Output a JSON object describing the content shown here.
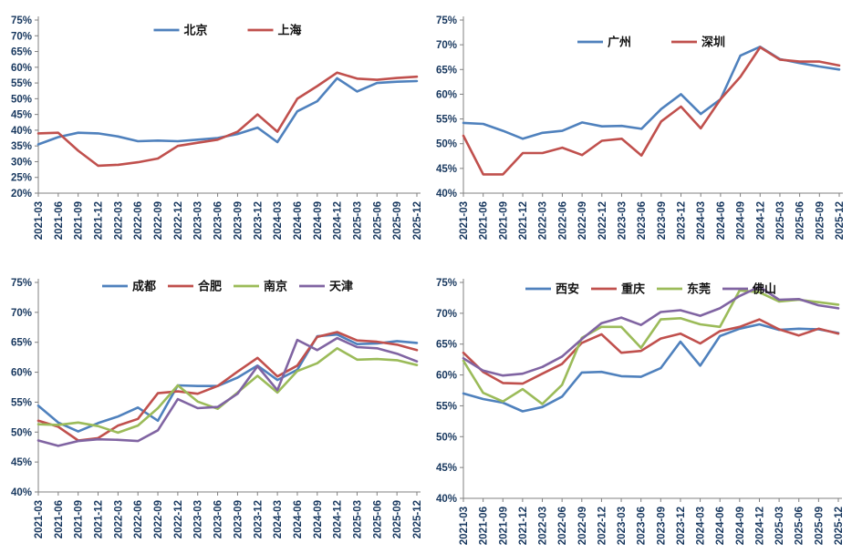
{
  "page": {
    "background": "#FFFFFF",
    "description": "Four quarterly line charts of city percentages, 2021-03 to 2025-12"
  },
  "colors": {
    "series_blue": "#4F81BD",
    "series_red": "#C0504D",
    "series_green": "#9BBB59",
    "series_purple": "#8064A2",
    "axis_line": "#808080",
    "tick_label": "#17375E",
    "legend_text": "#111111"
  },
  "chart_data": [
    {
      "type": "line",
      "position": "top-left",
      "title": "",
      "xlabel": "",
      "ylabel": "",
      "grid": false,
      "legend_position": "top-center-inside",
      "ylim": [
        20,
        75
      ],
      "ytick_step": 5,
      "ytick_suffix": "%",
      "categories": [
        "2021-03",
        "2021-06",
        "2021-09",
        "2021-12",
        "2022-03",
        "2022-06",
        "2022-09",
        "2022-12",
        "2023-03",
        "2023-06",
        "2023-09",
        "2023-12",
        "2024-03",
        "2024-06",
        "2024-09",
        "2024-12",
        "2025-03",
        "2025-06",
        "2025-09",
        "2025-12"
      ],
      "series": [
        {
          "name": "北京",
          "color": "#4F81BD",
          "values": [
            35.5,
            37.8,
            39.2,
            39.0,
            38.0,
            36.5,
            36.7,
            36.5,
            37.0,
            37.5,
            38.8,
            40.8,
            36.2,
            46.0,
            49.2,
            56.5,
            52.3,
            55.0,
            55.4,
            55.6
          ]
        },
        {
          "name": "上海",
          "color": "#C0504D",
          "values": [
            39.0,
            39.2,
            33.5,
            28.7,
            29.0,
            29.8,
            31.0,
            35.0,
            36.0,
            37.0,
            39.5,
            45.0,
            39.5,
            50.0,
            54.0,
            58.3,
            56.4,
            56.0,
            56.6,
            57.0
          ]
        }
      ]
    },
    {
      "type": "line",
      "position": "top-right",
      "title": "",
      "xlabel": "",
      "ylabel": "",
      "grid": false,
      "legend_position": "top-center-inside",
      "ylim": [
        40,
        75
      ],
      "ytick_step": 5,
      "ytick_suffix": "%",
      "categories": [
        "2021-03",
        "2021-06",
        "2021-09",
        "2021-12",
        "2022-03",
        "2022-06",
        "2022-09",
        "2022-12",
        "2023-03",
        "2023-06",
        "2023-09",
        "2023-12",
        "2024-03",
        "2024-06",
        "2024-09",
        "2024-12",
        "2025-03",
        "2025-06",
        "2025-09",
        "2025-12"
      ],
      "series": [
        {
          "name": "广州",
          "color": "#4F81BD",
          "values": [
            54.2,
            54.0,
            52.6,
            51.0,
            52.2,
            52.6,
            54.3,
            53.5,
            53.6,
            53.0,
            57.0,
            60.0,
            56.0,
            59.0,
            67.8,
            69.6,
            67.1,
            66.3,
            65.6,
            65.0
          ]
        },
        {
          "name": "深圳",
          "color": "#C0504D",
          "values": [
            51.6,
            43.8,
            43.8,
            48.1,
            48.1,
            49.2,
            47.7,
            50.6,
            51.0,
            47.6,
            54.5,
            57.5,
            53.1,
            59.0,
            63.5,
            69.5,
            67.0,
            66.6,
            66.6,
            65.8
          ]
        }
      ]
    },
    {
      "type": "line",
      "position": "bottom-left",
      "title": "",
      "xlabel": "",
      "ylabel": "",
      "grid": false,
      "legend_position": "top-center-inside",
      "ylim": [
        40,
        75
      ],
      "ytick_step": 5,
      "ytick_suffix": "%",
      "categories": [
        "2021-03",
        "2021-06",
        "2021-09",
        "2021-12",
        "2022-03",
        "2022-06",
        "2022-09",
        "2022-12",
        "2023-03",
        "2023-06",
        "2023-09",
        "2023-12",
        "2024-03",
        "2024-06",
        "2024-09",
        "2024-12",
        "2025-03",
        "2025-06",
        "2025-09",
        "2025-12"
      ],
      "series": [
        {
          "name": "成都",
          "color": "#4F81BD",
          "values": [
            54.4,
            51.6,
            50.1,
            51.5,
            52.6,
            54.1,
            51.9,
            57.8,
            57.7,
            57.7,
            59.1,
            61.1,
            58.7,
            60.4,
            66.0,
            66.3,
            64.7,
            64.8,
            65.2,
            64.9
          ]
        },
        {
          "name": "合肥",
          "color": "#C0504D",
          "values": [
            51.9,
            50.9,
            48.6,
            49.0,
            51.1,
            52.2,
            56.5,
            56.8,
            56.4,
            57.7,
            60.1,
            62.4,
            59.3,
            61.1,
            65.9,
            66.7,
            65.3,
            65.1,
            64.6,
            63.7
          ]
        },
        {
          "name": "南京",
          "color": "#9BBB59",
          "values": [
            51.3,
            51.2,
            51.6,
            51.0,
            49.9,
            51.1,
            54.0,
            57.8,
            55.1,
            53.9,
            56.6,
            59.4,
            56.6,
            60.2,
            61.5,
            64.0,
            62.1,
            62.2,
            62.0,
            61.2
          ]
        },
        {
          "name": "天津",
          "color": "#8064A2",
          "values": [
            48.6,
            47.7,
            48.5,
            48.8,
            48.7,
            48.5,
            50.3,
            55.5,
            54.0,
            54.2,
            56.4,
            61.0,
            57.0,
            65.4,
            63.7,
            65.7,
            64.2,
            64.0,
            63.1,
            61.8
          ]
        }
      ]
    },
    {
      "type": "line",
      "position": "bottom-right",
      "title": "",
      "xlabel": "",
      "ylabel": "",
      "grid": false,
      "legend_position": "top-center-inside",
      "ylim": [
        40,
        75
      ],
      "ytick_step": 5,
      "ytick_suffix": "%",
      "categories": [
        "2021-03",
        "2021-06",
        "2021-09",
        "2021-12",
        "2022-03",
        "2022-06",
        "2022-09",
        "2022-12",
        "2023-03",
        "2023-06",
        "2023-09",
        "2023-12",
        "2024-03",
        "2024-06",
        "2024-09",
        "2024-12",
        "2025-03",
        "2025-06",
        "2025-09",
        "2025-12"
      ],
      "series": [
        {
          "name": "西安",
          "color": "#4F81BD",
          "values": [
            57.0,
            56.1,
            55.5,
            54.1,
            54.8,
            56.5,
            60.4,
            60.5,
            59.8,
            59.7,
            61.1,
            65.4,
            61.5,
            66.3,
            67.5,
            68.2,
            67.3,
            67.5,
            67.4,
            66.8
          ]
        },
        {
          "name": "重庆",
          "color": "#C0504D",
          "values": [
            63.6,
            60.5,
            58.7,
            58.6,
            60.2,
            61.8,
            65.2,
            66.6,
            63.6,
            63.9,
            65.9,
            66.7,
            65.1,
            67.1,
            67.8,
            69.0,
            67.4,
            66.4,
            67.5,
            66.7
          ]
        },
        {
          "name": "东莞",
          "color": "#9BBB59",
          "values": [
            62.3,
            57.1,
            55.7,
            57.7,
            55.3,
            58.4,
            66.0,
            67.8,
            67.8,
            64.4,
            69.0,
            69.2,
            68.2,
            67.8,
            73.7,
            73.4,
            71.9,
            72.2,
            71.8,
            71.4
          ]
        },
        {
          "name": "佛山",
          "color": "#8064A2",
          "values": [
            62.7,
            60.7,
            59.9,
            60.2,
            61.3,
            63.0,
            65.8,
            68.4,
            69.3,
            68.1,
            70.2,
            70.5,
            69.6,
            70.8,
            72.8,
            74.3,
            72.2,
            72.3,
            71.3,
            70.8
          ]
        }
      ]
    }
  ]
}
